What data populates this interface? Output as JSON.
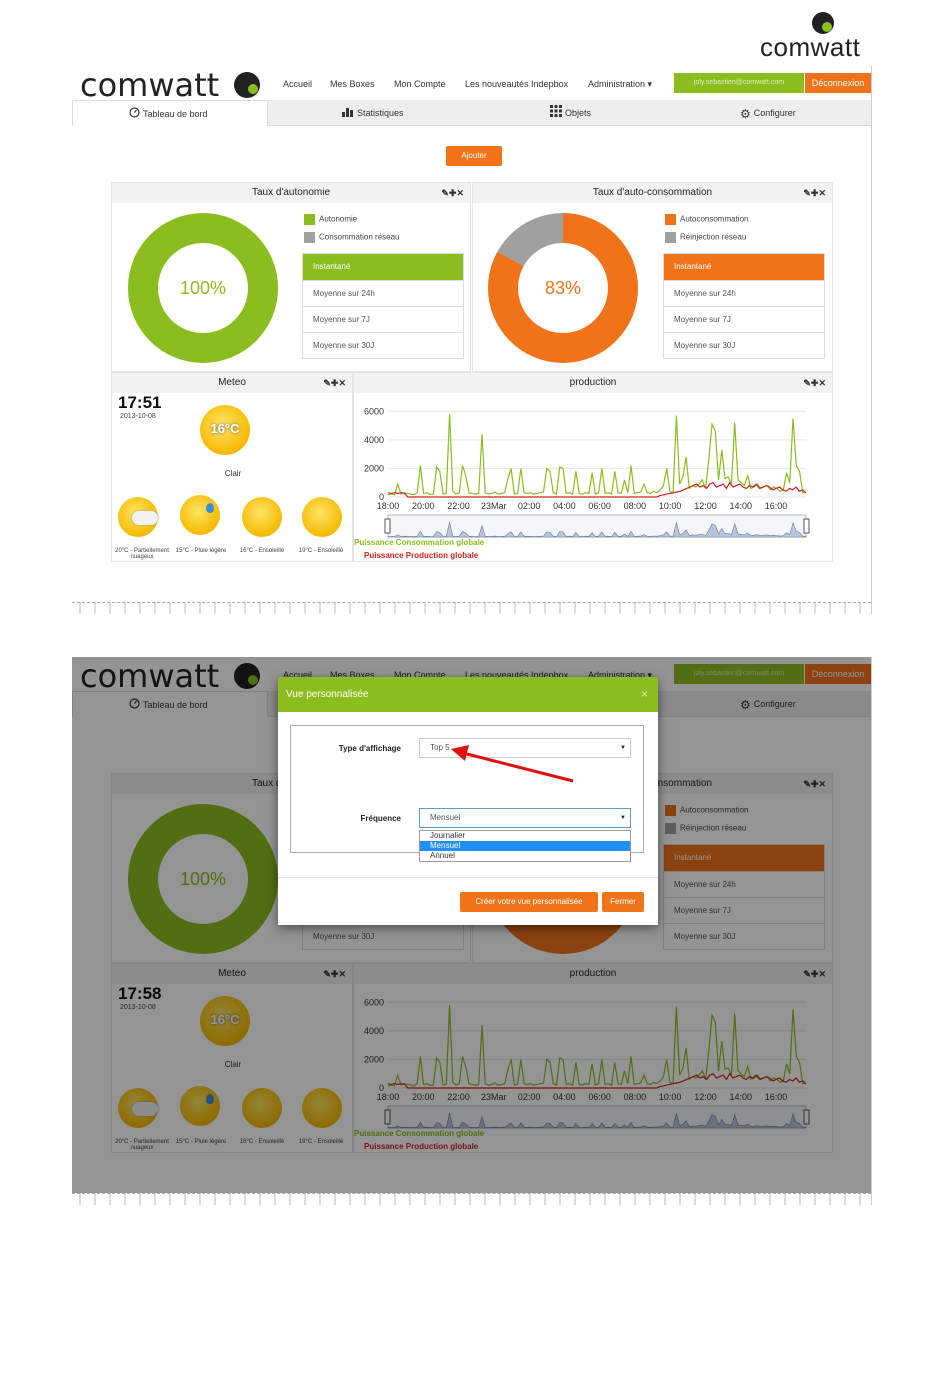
{
  "doc_logo": "comwatt",
  "colors": {
    "green": "#8cbd1f",
    "orange": "#f07319",
    "grey": "#a0a0a0",
    "red": "#d42020",
    "blue": "#1e90ff"
  },
  "screen1": {
    "brand": "comwatt",
    "nav": [
      "Accueil",
      "Mes Boxes",
      "Mon Compte",
      "Les nouveautés Indepbox",
      "Administration"
    ],
    "user_email": "joly.sebastien@comwatt.com",
    "logout": "Déconnexion",
    "tabs": [
      {
        "label": "Tableau de bord",
        "icon": "dashboard-icon"
      },
      {
        "label": "Statistiques",
        "icon": "bar-chart-icon"
      },
      {
        "label": "Objets",
        "icon": "grid-icon"
      },
      {
        "label": "Configurer",
        "icon": "gear-icon"
      }
    ],
    "add_button": "Ajouter",
    "autonomy": {
      "title": "Taux d'autonomie",
      "value_text": "100%",
      "value": 100,
      "legend": [
        "Autonomie",
        "Consommation réseau"
      ],
      "periods": [
        "Instantané",
        "Moyenne sur 24h",
        "Moyenne sur 7J",
        "Moyenne sur 30J"
      ]
    },
    "selfcons": {
      "title": "Taux d'auto-consommation",
      "value_text": "83%",
      "value": 83,
      "legend": [
        "Autoconsommation",
        "Réinjection réseau"
      ],
      "periods": [
        "Instantané",
        "Moyenne sur 24h",
        "Moyenne sur 7J",
        "Moyenne sur 30J"
      ]
    },
    "meteo": {
      "title": "Meteo",
      "time": "17:51",
      "date": "2013-10-08",
      "current_temp": "16°C",
      "current_desc": "Clair",
      "forecast": [
        {
          "label": "20°C - Partiellement nuageux",
          "icon": "partly-cloudy-icon"
        },
        {
          "label": "15°C - Pluie légère",
          "icon": "light-rain-icon"
        },
        {
          "label": "16°C - Ensoleillé",
          "icon": "sunny-icon"
        },
        {
          "label": "19°C - Ensoleillé",
          "icon": "sunny-icon"
        }
      ]
    },
    "production": {
      "title": "production",
      "legend_consumption": "Puissance Consommation globale",
      "legend_production": "Puissance Production globale"
    },
    "flags": [
      "en-flag",
      "fr-flag",
      "de-flag"
    ]
  },
  "screen2": {
    "time": "17:58",
    "date": "2013-10-08",
    "modal": {
      "title": "Vue personnalisée",
      "close": "×",
      "type_label": "Type d'affichage",
      "type_value": "Top 5",
      "freq_label": "Fréquence",
      "freq_value": "Mensuel",
      "freq_options": [
        "Journalier",
        "Mensuel",
        "Annuel"
      ],
      "create_button": "Créer votre vue personnalisée",
      "close_button": "Fermer"
    }
  },
  "chart_data": {
    "type": "line",
    "title": "production",
    "x_ticks": [
      "18:00",
      "20:00",
      "22:00",
      "23Mar",
      "02:00",
      "04:00",
      "06:00",
      "08:00",
      "10:00",
      "12:00",
      "14:00",
      "16:00"
    ],
    "y_ticks": [
      0,
      2000,
      4000,
      6000
    ],
    "ylim": [
      0,
      7000
    ],
    "series": [
      {
        "name": "Puissance Consommation globale",
        "color": "#8cbd1f",
        "values": [
          150,
          200,
          150,
          900,
          200,
          300,
          250,
          200,
          150,
          300,
          2200,
          250,
          300,
          180,
          200,
          2100,
          1800,
          200,
          250,
          5800,
          400,
          200,
          300,
          2200,
          1500,
          300,
          250,
          200,
          250,
          4400,
          300,
          200,
          250,
          350,
          200,
          250,
          300,
          1300,
          2000,
          200,
          250,
          2000,
          300,
          250,
          300,
          200,
          250,
          300,
          350,
          2000,
          1800,
          300,
          200,
          2100,
          2000,
          250,
          300,
          200,
          1800,
          250,
          200,
          300,
          250,
          1700,
          200,
          300,
          2000,
          250,
          300,
          200,
          1800,
          300,
          250,
          1200,
          300,
          2200,
          250,
          300,
          350,
          900,
          300,
          250,
          400,
          300,
          500,
          800,
          2000,
          400,
          300,
          5700,
          900,
          1400,
          2800,
          600,
          800,
          700,
          900,
          1200,
          600,
          2600,
          5100,
          4600,
          1200,
          3300,
          1300,
          1400,
          900,
          5200,
          1200,
          1000,
          800,
          1500,
          600,
          700,
          900,
          600,
          700,
          800,
          500,
          700,
          600,
          400,
          500,
          1700,
          1000,
          5500,
          2200,
          1800,
          300,
          300
        ]
      },
      {
        "name": "Puissance Production globale",
        "color": "#d42020",
        "values": [
          300,
          250,
          300,
          250,
          300,
          250,
          0,
          0,
          0,
          0,
          0,
          0,
          0,
          0,
          0,
          0,
          0,
          0,
          0,
          0,
          0,
          0,
          0,
          0,
          0,
          0,
          0,
          0,
          0,
          0,
          0,
          0,
          0,
          0,
          0,
          0,
          0,
          0,
          0,
          0,
          0,
          0,
          0,
          0,
          0,
          0,
          0,
          0,
          0,
          0,
          0,
          0,
          0,
          0,
          0,
          0,
          0,
          0,
          0,
          0,
          0,
          0,
          0,
          0,
          0,
          0,
          0,
          0,
          0,
          0,
          0,
          0,
          0,
          0,
          0,
          0,
          0,
          0,
          0,
          0,
          0,
          0,
          100,
          150,
          200,
          250,
          300,
          350,
          400,
          500,
          600,
          700,
          800,
          900,
          700,
          800,
          600,
          900,
          1000,
          700,
          800,
          900,
          600,
          1000,
          700,
          800,
          900,
          700,
          600,
          800,
          700,
          900,
          600,
          700,
          800,
          700,
          500,
          600,
          700,
          500,
          400,
          600,
          500,
          700,
          400,
          500,
          300
        ]
      }
    ]
  }
}
